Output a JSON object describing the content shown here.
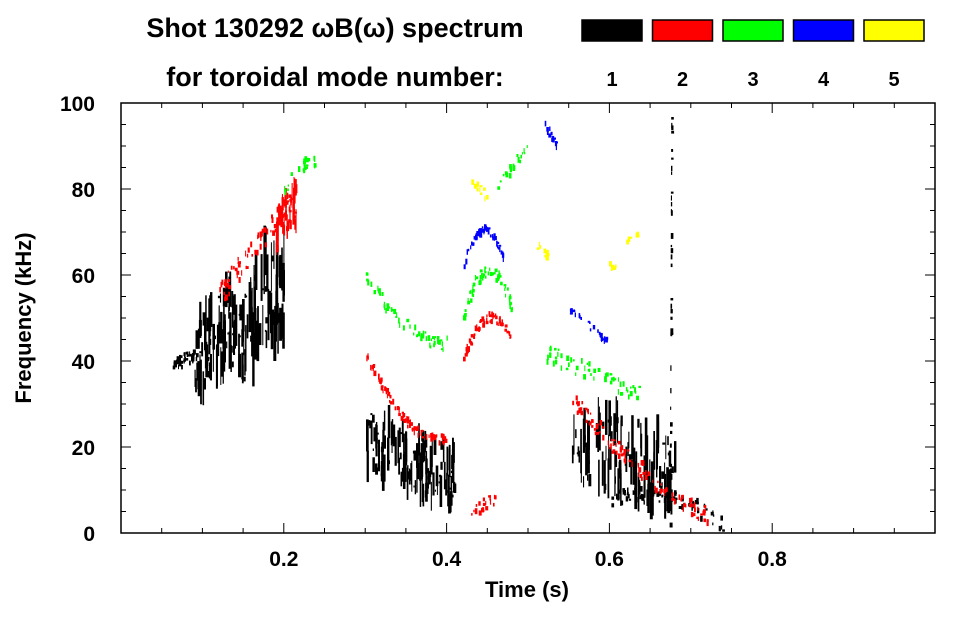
{
  "chart_data": {
    "type": "heatmap",
    "title_line1": "Shot 130292 ωB(ω) spectrum",
    "title_line2": "for toroidal mode number:",
    "xlabel": "Time (s)",
    "ylabel": "Frequency (kHz)",
    "xlim": [
      0,
      1.0
    ],
    "ylim": [
      0,
      100
    ],
    "xticks": [
      0.2,
      0.4,
      0.6,
      0.8
    ],
    "xtick_labels": [
      "0.2",
      "0.4",
      "0.6",
      "0.8"
    ],
    "xminor_step": 0.05,
    "yticks": [
      0,
      20,
      40,
      60,
      80,
      100
    ],
    "ytick_labels": [
      "0",
      "20",
      "40",
      "60",
      "80",
      "100"
    ],
    "yminor_step": 5,
    "legend": [
      {
        "label": "1",
        "color": "#000000"
      },
      {
        "label": "2",
        "color": "#ff0000"
      },
      {
        "label": "3",
        "color": "#00ff00"
      },
      {
        "label": "4",
        "color": "#0000ff"
      },
      {
        "label": "5",
        "color": "#ffff00"
      }
    ],
    "legend_placement": "top-right",
    "segments": [
      {
        "mode": 1,
        "t0": 0.06,
        "t1": 0.1,
        "f0": 39,
        "f1": 42,
        "arch": 0,
        "spread": 3,
        "density": 40
      },
      {
        "mode": 1,
        "t0": 0.09,
        "t1": 0.15,
        "f0": 38,
        "f1": 45,
        "arch": 6,
        "spread": 18,
        "density": 90
      },
      {
        "mode": 1,
        "t0": 0.15,
        "t1": 0.2,
        "f0": 45,
        "f1": 55,
        "arch": 5,
        "spread": 22,
        "density": 70
      },
      {
        "mode": 1,
        "t0": 0.3,
        "t1": 0.41,
        "f0": 22,
        "f1": 12,
        "arch": 0,
        "spread": 14,
        "density": 140
      },
      {
        "mode": 1,
        "t0": 0.55,
        "t1": 0.68,
        "f0": 18,
        "f1": 12,
        "arch": 4,
        "spread": 18,
        "density": 110
      },
      {
        "mode": 1,
        "t0": 0.6,
        "t1": 0.74,
        "f0": 8,
        "f1": 2,
        "arch": 3,
        "spread": 4,
        "density": 80
      },
      {
        "mode": 1,
        "t0": 0.674,
        "t1": 0.676,
        "f0": 2,
        "f1": 98,
        "arch": 0,
        "spread": 1,
        "density": 40
      },
      {
        "mode": 2,
        "t0": 0.12,
        "t1": 0.21,
        "f0": 55,
        "f1": 78,
        "arch": 0,
        "spread": 6,
        "density": 80
      },
      {
        "mode": 2,
        "t0": 0.19,
        "t1": 0.215,
        "f0": 68,
        "f1": 76,
        "arch": 2,
        "spread": 10,
        "density": 40
      },
      {
        "mode": 2,
        "t0": 0.3,
        "t1": 0.4,
        "f0": 42,
        "f1": 22,
        "arch": -6,
        "spread": 2,
        "density": 90
      },
      {
        "mode": 2,
        "t0": 0.42,
        "t1": 0.48,
        "f0": 40,
        "f1": 44,
        "arch": 8,
        "spread": 2,
        "density": 60
      },
      {
        "mode": 2,
        "t0": 0.43,
        "t1": 0.46,
        "f0": 5,
        "f1": 8,
        "arch": 0,
        "spread": 3,
        "density": 20
      },
      {
        "mode": 2,
        "t0": 0.55,
        "t1": 0.72,
        "f0": 32,
        "f1": 4,
        "arch": -3,
        "spread": 4,
        "density": 110
      },
      {
        "mode": 3,
        "t0": 0.2,
        "t1": 0.24,
        "f0": 80,
        "f1": 86,
        "arch": 2,
        "spread": 3,
        "density": 25
      },
      {
        "mode": 3,
        "t0": 0.3,
        "t1": 0.4,
        "f0": 60,
        "f1": 44,
        "arch": -4,
        "spread": 3,
        "density": 60
      },
      {
        "mode": 3,
        "t0": 0.42,
        "t1": 0.48,
        "f0": 50,
        "f1": 52,
        "arch": 10,
        "spread": 3,
        "density": 60
      },
      {
        "mode": 3,
        "t0": 0.46,
        "t1": 0.5,
        "f0": 80,
        "f1": 90,
        "arch": 0,
        "spread": 3,
        "density": 20
      },
      {
        "mode": 3,
        "t0": 0.52,
        "t1": 0.64,
        "f0": 42,
        "f1": 32,
        "arch": 0,
        "spread": 4,
        "density": 60
      },
      {
        "mode": 4,
        "t0": 0.42,
        "t1": 0.47,
        "f0": 62,
        "f1": 63,
        "arch": 8,
        "spread": 1.5,
        "density": 50
      },
      {
        "mode": 4,
        "t0": 0.52,
        "t1": 0.535,
        "f0": 95,
        "f1": 90,
        "arch": 0,
        "spread": 2,
        "density": 15
      },
      {
        "mode": 4,
        "t0": 0.55,
        "t1": 0.6,
        "f0": 52,
        "f1": 44,
        "arch": 0,
        "spread": 2,
        "density": 25
      },
      {
        "mode": 5,
        "t0": 0.43,
        "t1": 0.45,
        "f0": 82,
        "f1": 78,
        "arch": 0,
        "spread": 2,
        "density": 12
      },
      {
        "mode": 5,
        "t0": 0.51,
        "t1": 0.53,
        "f0": 67,
        "f1": 63,
        "arch": 0,
        "spread": 2,
        "density": 12
      },
      {
        "mode": 5,
        "t0": 0.59,
        "t1": 0.61,
        "f0": 62,
        "f1": 62,
        "arch": 0,
        "spread": 1.5,
        "density": 6
      },
      {
        "mode": 5,
        "t0": 0.62,
        "t1": 0.635,
        "f0": 68,
        "f1": 69,
        "arch": 0,
        "spread": 1.5,
        "density": 6
      }
    ]
  }
}
